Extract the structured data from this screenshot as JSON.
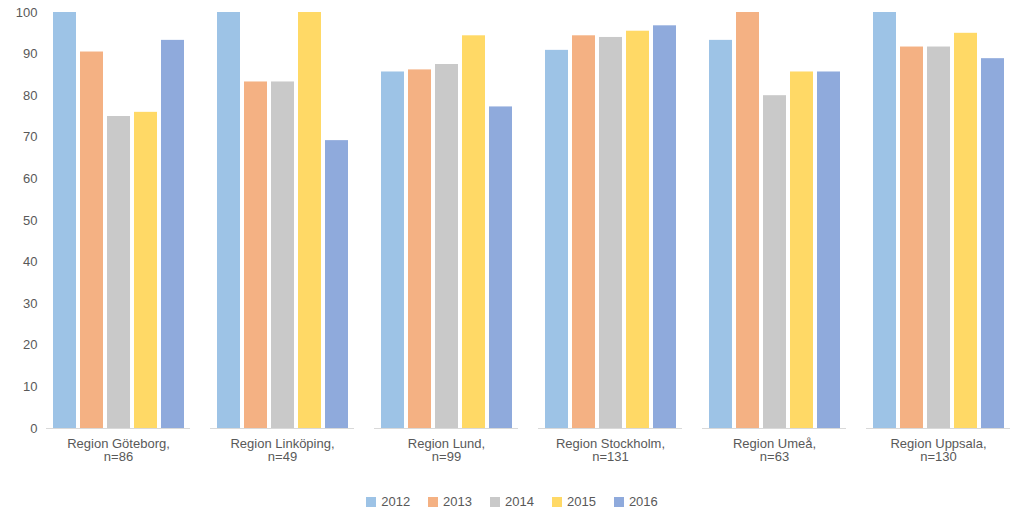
{
  "chart_data": {
    "type": "bar",
    "categories": [
      "Region Göteborg,\nn=86",
      "Region Linköping,\nn=49",
      "Region Lund,\nn=99",
      "Region Stockholm,\nn=131",
      "Region Umeå,\nn=63",
      "Region Uppsala,\nn=130"
    ],
    "series": [
      {
        "name": "2012",
        "color": "#9dc3e6",
        "values": [
          100,
          100,
          85.7,
          90.9,
          93.3,
          100
        ]
      },
      {
        "name": "2013",
        "color": "#f4b183",
        "values": [
          90.5,
          83.3,
          86.2,
          94.4,
          100,
          91.7
        ]
      },
      {
        "name": "2014",
        "color": "#c9c9c9",
        "values": [
          75,
          83.3,
          87.5,
          94,
          80,
          91.7
        ]
      },
      {
        "name": "2015",
        "color": "#ffd966",
        "values": [
          76,
          100,
          94.4,
          95.5,
          85.7,
          95
        ]
      },
      {
        "name": "2016",
        "color": "#8faadc",
        "values": [
          93.3,
          69.2,
          77.3,
          96.8,
          85.7,
          88.9
        ]
      }
    ],
    "ylim": [
      0,
      100
    ],
    "yticks": [
      0,
      10,
      20,
      30,
      40,
      50,
      60,
      70,
      80,
      90,
      100
    ],
    "grid": false,
    "legend": "bottom"
  }
}
